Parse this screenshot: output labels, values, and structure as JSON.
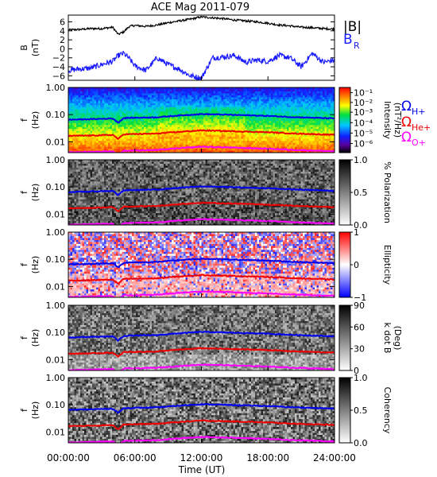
{
  "title": "ACE Mag 2011-079",
  "time_axis": {
    "label": "Time (UT)",
    "ticks": [
      "00:00:00",
      "06:00:00",
      "12:00:00",
      "18:00:00",
      "24:00:00"
    ],
    "range_hours": [
      0,
      24
    ]
  },
  "legend": {
    "b_total": "|B|",
    "b_r": "B",
    "b_r_sub": "R",
    "omega_h": "Ω",
    "omega_h_sub": "H+",
    "omega_he": "Ω",
    "omega_he_sub": "He+",
    "omega_o": "Ω",
    "omega_o_sub": "O+"
  },
  "colors": {
    "b_total": "#000000",
    "b_r": "#1a1aff",
    "omega_h": "#0000ee",
    "omega_he": "#ee0000",
    "omega_o": "#ff00ff"
  },
  "panels": [
    {
      "id": "b",
      "ylabel": "B",
      "yunit": "(nT)",
      "yticks": [
        "6",
        "4",
        "2",
        "0",
        "−2",
        "−4",
        "−6"
      ]
    },
    {
      "id": "intensity",
      "ylabel": "f",
      "yunit": "(Hz)",
      "yticks": [
        "1.00",
        "0.10",
        "0.01"
      ],
      "colorbar_label": "Intensity",
      "colorbar_unit": "(nT²/Hz)",
      "colorbar_ticks": [
        "10⁻¹",
        "10⁻²",
        "10⁻³",
        "10⁻⁴",
        "10⁻⁵",
        "10⁻⁶"
      ]
    },
    {
      "id": "polarization",
      "ylabel": "f",
      "yunit": "(Hz)",
      "yticks": [
        "1.00",
        "0.10",
        "0.01"
      ],
      "colorbar_label": "% Polarization",
      "colorbar_ticks": [
        "1.0",
        "0.5",
        "0.0"
      ]
    },
    {
      "id": "ellipticity",
      "ylabel": "f",
      "yunit": "(Hz)",
      "yticks": [
        "1.00",
        "0.10",
        "0.01"
      ],
      "colorbar_label": "Ellipticity",
      "colorbar_ticks": [
        "1",
        "0",
        "−1"
      ]
    },
    {
      "id": "kdotb",
      "ylabel": "f",
      "yunit": "(Hz)",
      "yticks": [
        "1.00",
        "0.10",
        "0.01"
      ],
      "colorbar_label": "k dot B",
      "colorbar_unit": "(Deg)",
      "colorbar_ticks": [
        "90",
        "60",
        "30",
        "0"
      ]
    },
    {
      "id": "coherency",
      "ylabel": "f",
      "yunit": "(Hz)",
      "yticks": [
        "1.00",
        "0.10",
        "0.01"
      ],
      "colorbar_label": "Coherency",
      "colorbar_ticks": [
        "1.0",
        "0.5",
        "0.0"
      ]
    }
  ],
  "chart_data": [
    {
      "type": "line",
      "x": [
        0,
        1,
        2,
        3,
        4,
        4.5,
        5,
        5.5,
        6,
        7,
        8,
        9,
        10,
        11,
        12,
        13,
        14,
        15,
        16,
        17,
        18,
        19,
        20,
        21,
        22,
        23,
        24
      ],
      "xlabel": "Time (UT)",
      "ylabel": "B (nT)",
      "ylim": [
        -7,
        7.5
      ],
      "series": [
        {
          "name": "|B|",
          "values": [
            4.2,
            4.3,
            4.5,
            4.5,
            4.8,
            3.2,
            3.8,
            5.0,
            5.2,
            5.0,
            5.3,
            5.8,
            6.2,
            6.6,
            7.1,
            6.9,
            6.7,
            6.4,
            6.2,
            6.0,
            5.7,
            5.3,
            5.1,
            4.8,
            4.7,
            4.5,
            4.4
          ]
        },
        {
          "name": "B_R",
          "values": [
            -4.8,
            -4.5,
            -4.3,
            -3.5,
            -2.8,
            -1.5,
            -1.0,
            -2.2,
            -3.8,
            -4.8,
            -2.0,
            -3.5,
            -4.5,
            -6.0,
            -6.5,
            -2.0,
            -1.8,
            -1.5,
            -3.0,
            -2.5,
            -2.8,
            -1.5,
            -2.0,
            -4.0,
            -1.0,
            -3.0,
            -2.5
          ]
        }
      ]
    },
    {
      "type": "line",
      "x": [
        0,
        2,
        4,
        4.5,
        5,
        6,
        8,
        10,
        12,
        14,
        16,
        18,
        20,
        22,
        24
      ],
      "xlabel": "Time (UT)",
      "ylabel": "f (Hz)",
      "ylim": [
        0.004,
        1.0
      ],
      "yscale": "log",
      "series": [
        {
          "name": "ΩH+",
          "values": [
            0.065,
            0.068,
            0.072,
            0.05,
            0.075,
            0.077,
            0.08,
            0.093,
            0.105,
            0.1,
            0.095,
            0.09,
            0.082,
            0.077,
            0.072
          ]
        },
        {
          "name": "ΩHe+",
          "values": [
            0.0165,
            0.017,
            0.018,
            0.0125,
            0.019,
            0.0193,
            0.02,
            0.0233,
            0.0263,
            0.025,
            0.0238,
            0.0225,
            0.0205,
            0.0193,
            0.018
          ]
        },
        {
          "name": "ΩO+",
          "values": [
            0.0041,
            0.0043,
            0.0045,
            0.0031,
            0.0047,
            0.0048,
            0.005,
            0.0058,
            0.0066,
            0.0063,
            0.0059,
            0.0056,
            0.0051,
            0.0048,
            0.0045
          ]
        }
      ]
    }
  ]
}
